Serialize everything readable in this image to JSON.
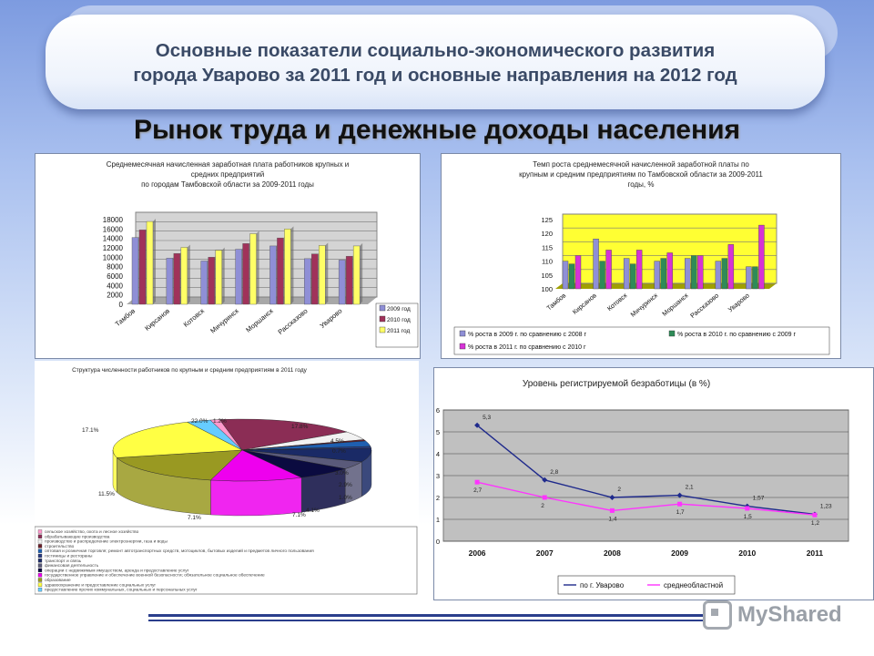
{
  "header": {
    "title_line1": "Основные показатели социально-экономического развития",
    "title_line2": "города Уварово за 2011 год и основные направления на 2012 год"
  },
  "section_title": "Рынок труда и денежные доходы населения",
  "watermark": "MyShared",
  "colors": {
    "series_2009": "#8f8fd6",
    "series_2010": "#a0325a",
    "series_2011": "#ffff66",
    "plot_bg": "#c0c0c0",
    "accent_blue": "#1f2a8c",
    "accent_magenta": "#ff33ff"
  },
  "chart_data": [
    {
      "type": "bar",
      "title_lines": [
        "Среднемесячная начисленная заработная плата работников крупных и",
        "средних предприятий",
        "по городам Тамбовской области за 2009-2011 годы"
      ],
      "categories": [
        "Тамбов",
        "Кирсанов",
        "Котовск",
        "Мичуринск",
        "Моршанск",
        "Рассказово",
        "Уварово"
      ],
      "series": [
        {
          "name": "2009 год",
          "values": [
            14200,
            9800,
            9200,
            11700,
            12400,
            9700,
            9400
          ]
        },
        {
          "name": "2010 год",
          "values": [
            15800,
            10800,
            10000,
            12900,
            14100,
            10700,
            10200
          ]
        },
        {
          "name": "2011 год",
          "values": [
            17600,
            12100,
            11500,
            15000,
            16000,
            12500,
            12400
          ]
        }
      ],
      "yticks": [
        "0",
        "2000",
        "4000",
        "6000",
        "8000",
        "10000",
        "12000",
        "14000",
        "16000",
        "18000"
      ],
      "ylim": [
        0,
        18000
      ]
    },
    {
      "type": "bar",
      "title_lines": [
        "Темп роста среднемесячной начисленной заработной платы по",
        "крупным и средним предприятиям по Тамбовской области за 2009-2011",
        "годы, %"
      ],
      "categories": [
        "Тамбов",
        "Кирсанов",
        "Котовск",
        "Мичуринск",
        "Моршанск",
        "Рассказово",
        "Уварово"
      ],
      "series": [
        {
          "name": "% роста в 2009 г. по сравнению с 2008 г",
          "values": [
            110,
            118,
            111,
            110,
            111,
            110,
            108
          ]
        },
        {
          "name": "% роста в 2010 г. по сравнению с 2009 г",
          "values": [
            109,
            110,
            109,
            111,
            112,
            111,
            108
          ]
        },
        {
          "name": "% роста в 2011 г. по сравнению с 2010 г",
          "values": [
            112,
            114,
            114,
            113,
            112,
            116,
            123
          ]
        }
      ],
      "yticks": [
        "100",
        "105",
        "110",
        "115",
        "120",
        "125"
      ],
      "ylim": [
        100,
        125
      ]
    },
    {
      "type": "pie",
      "title": "Структура численности работников по крупным и средним предприятиям в 2011 году",
      "slices": [
        {
          "label": "1.2%",
          "value": 1.2,
          "color": "#ff99cc"
        },
        {
          "label": "17.8%",
          "value": 17.8,
          "color": "#8b2d55"
        },
        {
          "label": "4.5%",
          "value": 4.5,
          "color": "#f2f2f2"
        },
        {
          "label": "0.7%",
          "value": 0.7,
          "color": "#6a1f2a"
        },
        {
          "label": "2.9%",
          "value": 2.9,
          "color": "#1f5fb0"
        },
        {
          "label": "1.0%",
          "value": 1.0,
          "color": "#2a3c80"
        },
        {
          "label": "7.1%",
          "value": 7.1,
          "color": "#1a2a66"
        },
        {
          "label": "4.1%",
          "value": 4.1,
          "color": "#5a5a7a"
        },
        {
          "label": "7.1%",
          "value": 7.1,
          "color": "#0b0b40"
        },
        {
          "label": "11.5%",
          "value": 11.5,
          "color": "#ee00ee"
        },
        {
          "label": "17.1%",
          "value": 17.1,
          "color": "#999922"
        },
        {
          "label": "22.0%",
          "value": 22.0,
          "color": "#ffff44"
        },
        {
          "label": "3.0%",
          "value": 3.0,
          "color": "#66ccff"
        }
      ],
      "legend": [
        "сельское хозяйство, охота и лесное хозяйство",
        "обрабатывающие производства",
        "производство и распределение электроэнергии, газа и воды",
        "строительство",
        "оптовая и розничная торговля; ремонт автотранспортных средств, мотоциклов, бытовых изделий и предметов личного пользования",
        "гостиницы и рестораны",
        "транспорт и связь",
        "финансовая деятельность",
        "операции с недвижимым имуществом, аренда и предоставление услуг",
        "государственное управление и обеспечение военной безопасности; обязательное социальное обеспечение",
        "образование",
        "здравоохранение и предоставление социальных услуг",
        "предоставление прочих коммунальных, социальных и персональных услуг"
      ]
    },
    {
      "type": "line",
      "title": "Уровень регистрируемой безработицы (в %)",
      "x": [
        "2006",
        "2007",
        "2008",
        "2009",
        "2010",
        "2011"
      ],
      "series": [
        {
          "name": "по г. Уварово",
          "values": [
            5.3,
            2.8,
            2.0,
            2.1,
            1.6,
            1.23
          ],
          "labels": [
            "5,3",
            "2,8",
            "2",
            "2,1",
            "1,57",
            "1,23"
          ]
        },
        {
          "name": "среднеобластной",
          "values": [
            2.7,
            2.0,
            1.4,
            1.7,
            1.5,
            1.2
          ],
          "labels": [
            "2,7",
            "2",
            "1,4",
            "1,7",
            "1,5",
            "1,2"
          ]
        }
      ],
      "yticks": [
        "0",
        "1",
        "2",
        "3",
        "4",
        "5",
        "6"
      ],
      "ylim": [
        0,
        6
      ]
    }
  ]
}
